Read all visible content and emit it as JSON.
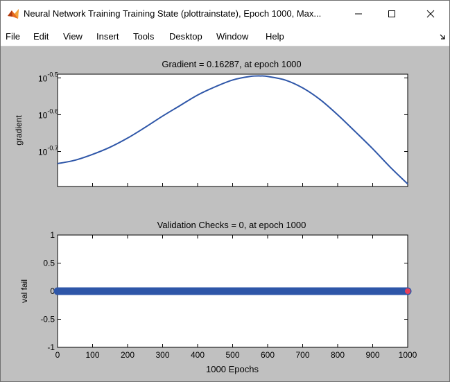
{
  "window": {
    "title": "Neural Network Training Training State (plottrainstate), Epoch 1000, Max...",
    "icon": "matlab-icon",
    "controls": {
      "minimize": "minimize-icon",
      "maximize": "maximize-icon",
      "close": "close-icon"
    }
  },
  "menu": {
    "items": [
      "File",
      "Edit",
      "View",
      "Insert",
      "Tools",
      "Desktop",
      "Window",
      "Help"
    ],
    "dock_icon": "dock-arrow-icon"
  },
  "colors": {
    "figure_bg": "#c0c0c0",
    "line": "#2e56a8",
    "marker_end": "#e8405a"
  },
  "chart_data": [
    {
      "type": "line",
      "title": "Gradient = 0.16287, at epoch 1000",
      "xlabel": "",
      "ylabel": "gradient",
      "yscale": "log",
      "xlim": [
        0,
        1000
      ],
      "yticks": [
        "10^-0.7",
        "10^-0.6",
        "10^-0.5"
      ],
      "series": [
        {
          "x": [
            0,
            50,
            100,
            150,
            200,
            250,
            300,
            350,
            400,
            450,
            500,
            550,
            580,
            600,
            650,
            700,
            750,
            800,
            850,
            900,
            950,
            1000
          ],
          "y": [
            0.185,
            0.189,
            0.196,
            0.205,
            0.217,
            0.232,
            0.249,
            0.266,
            0.284,
            0.299,
            0.312,
            0.319,
            0.32,
            0.319,
            0.312,
            0.297,
            0.276,
            0.251,
            0.226,
            0.203,
            0.181,
            0.16287
          ]
        }
      ]
    },
    {
      "type": "line",
      "title": "Validation Checks = 0, at epoch 1000",
      "xlabel": "1000 Epochs",
      "ylabel": "val fail",
      "xlim": [
        0,
        1000
      ],
      "ylim": [
        -1,
        1
      ],
      "xticks": [
        0,
        100,
        200,
        300,
        400,
        500,
        600,
        700,
        800,
        900,
        1000
      ],
      "yticks": [
        -1,
        -0.5,
        0,
        0.5,
        1
      ],
      "series": [
        {
          "x": [
            0,
            1000
          ],
          "y": [
            0,
            0
          ],
          "marker": "circle"
        }
      ],
      "final_point": {
        "x": 1000,
        "y": 0
      }
    }
  ]
}
